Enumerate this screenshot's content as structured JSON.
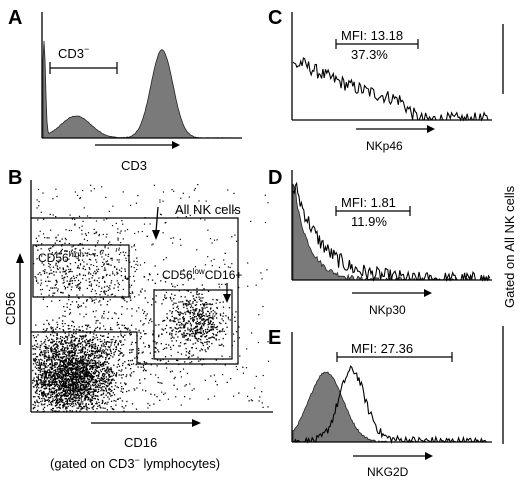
{
  "panels": {
    "A": {
      "label": "A",
      "gate_label": "CD3",
      "gate_sup": "−",
      "xlabel": "CD3"
    },
    "B": {
      "label": "B",
      "ylabel": "CD56",
      "xlabel": "CD16",
      "footnote_pre": "(gated on CD3",
      "footnote_sup": "−",
      "footnote_post": " lymphocytes)",
      "all_nk": "All NK cells",
      "cd56high_base": "CD56",
      "cd56high_sup": "high",
      "cd56low_base": "CD56",
      "cd56low_sup": "low",
      "cd56low_tail": "CD16+"
    },
    "C": {
      "label": "C",
      "mfi": "MFI: 13.18",
      "percent": "37.3%",
      "xlabel": "NKp46"
    },
    "D": {
      "label": "D",
      "mfi": "MFI: 1.81",
      "percent": "11.9%",
      "xlabel": "NKp30"
    },
    "E": {
      "label": "E",
      "mfi": "MFI: 27.36",
      "xlabel": "NKG2D"
    }
  },
  "side_label": "Gated on All NK cells",
  "colors": {
    "fill": "#7a7a7a",
    "line": "#000000",
    "background": "#ffffff"
  }
}
